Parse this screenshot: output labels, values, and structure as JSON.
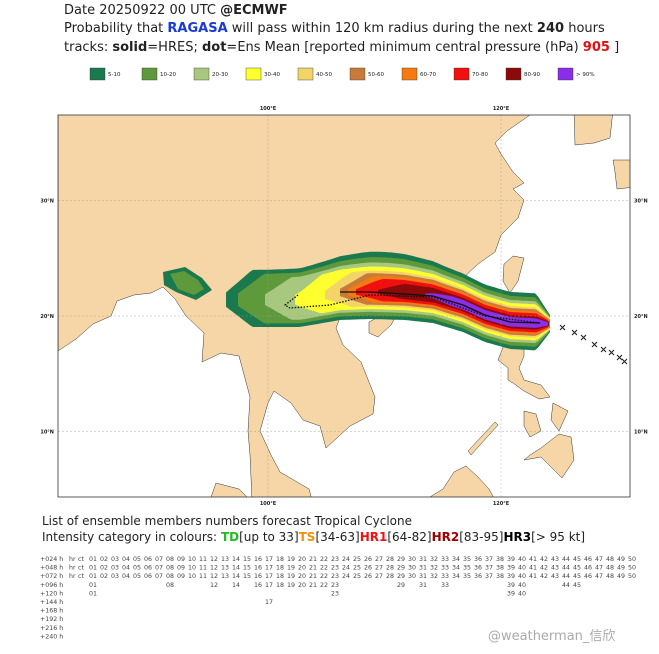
{
  "header": {
    "date": "Date 20250922 00 UTC",
    "source": "@ECMWF",
    "line2": {
      "pre": "Probability that",
      "storm": "RAGASA",
      "mid": "will pass within 120 km radius during the next",
      "hours": "240",
      "post": "hours"
    },
    "line3": {
      "pre": "tracks:",
      "solid": "solid",
      "hres": "=HRES;",
      "dot": "dot",
      "mean": "=Ens Mean [reported minimum central pressure (hPa)",
      "pressure": "905",
      "close": "]"
    }
  },
  "legend": [
    {
      "label": "5-10",
      "color": "#1a7a4e"
    },
    {
      "label": "10-20",
      "color": "#5e9a3c"
    },
    {
      "label": "20-30",
      "color": "#a8c880"
    },
    {
      "label": "30-40",
      "color": "#ffff30"
    },
    {
      "label": "40-50",
      "color": "#f2d468"
    },
    {
      "label": "50-60",
      "color": "#c87a3a"
    },
    {
      "label": "60-70",
      "color": "#f57a12"
    },
    {
      "label": "70-80",
      "color": "#f01010"
    },
    {
      "label": "80-90",
      "color": "#8c0a0a"
    },
    {
      "label": "> 90%",
      "color": "#8a2ee8"
    }
  ],
  "map": {
    "lon_labels": [
      "100°E",
      "120°E"
    ],
    "lat_labels": [
      "30°N",
      "20°N",
      "10°N"
    ]
  },
  "table": {
    "title": "List of ensemble members numbers forecast Tropical Cyclone",
    "intensity_intro": "Intensity category in colours:",
    "intensity": [
      {
        "label": "TD",
        "range": "[up to 33]",
        "color": "#22bb22"
      },
      {
        "label": "TS",
        "range": "[34-63]",
        "color": "#ff8c00"
      },
      {
        "label": "HR1",
        "range": "[64-82]",
        "color": "#ee1111"
      },
      {
        "label": "HR2",
        "range": "[83-95]",
        "color": "#a00000"
      },
      {
        "label": "HR3",
        "range": "[> 95 kt]",
        "color": "#000000"
      }
    ],
    "rows": [
      {
        "hour": "+024 h",
        "hres": "hr",
        "ctrl": "ct",
        "hres_cat": 3,
        "ctrl_cat": 2,
        "members": [
          "01",
          "02",
          "03",
          "04",
          "05",
          "06",
          "07",
          "08",
          "09",
          "10",
          "11",
          "12",
          "13",
          "14",
          "15",
          "16",
          "17",
          "18",
          "19",
          "20",
          "21",
          "22",
          "23",
          "24",
          "25",
          "26",
          "27",
          "28",
          "29",
          "30",
          "31",
          "32",
          "33",
          "34",
          "35",
          "36",
          "37",
          "38",
          "39",
          "40",
          "41",
          "42",
          "43",
          "44",
          "45",
          "46",
          "47",
          "48",
          "49",
          "50"
        ],
        "cats": [
          2,
          2,
          3,
          3,
          3,
          3,
          2,
          1,
          2,
          2,
          3,
          3,
          2,
          2,
          3,
          3,
          2,
          2,
          3,
          3,
          2,
          2,
          3,
          3,
          1,
          2,
          3,
          2,
          3,
          2,
          3,
          3,
          2,
          2,
          2,
          2,
          2,
          3,
          3,
          2,
          2,
          2,
          1,
          2,
          1,
          2,
          1,
          2,
          3,
          3
        ]
      },
      {
        "hour": "+048 h",
        "hres": "hr",
        "ctrl": "ct",
        "hres_cat": 2,
        "ctrl_cat": 2,
        "members": [
          "01",
          "02",
          "03",
          "04",
          "05",
          "06",
          "07",
          "08",
          "09",
          "10",
          "11",
          "12",
          "13",
          "14",
          "15",
          "16",
          "17",
          "18",
          "19",
          "20",
          "21",
          "22",
          "23",
          "24",
          "25",
          "26",
          "27",
          "28",
          "29",
          "30",
          "31",
          "32",
          "33",
          "34",
          "35",
          "36",
          "37",
          "38",
          "39",
          "40",
          "41",
          "42",
          "43",
          "44",
          "45",
          "46",
          "47",
          "48",
          "49",
          "50"
        ],
        "cats": [
          2,
          2,
          2,
          2,
          2,
          2,
          2,
          1,
          2,
          2,
          2,
          2,
          2,
          2,
          2,
          2,
          2,
          2,
          2,
          2,
          2,
          2,
          2,
          2,
          2,
          2,
          2,
          2,
          2,
          2,
          2,
          2,
          2,
          2,
          2,
          2,
          2,
          2,
          2,
          2,
          2,
          2,
          2,
          2,
          1,
          2,
          2,
          2,
          2,
          2
        ]
      },
      {
        "hour": "+072 h",
        "hres": "hr",
        "ctrl": "ct",
        "hres_cat": 1,
        "ctrl_cat": 1,
        "members": [
          "01",
          "02",
          "03",
          "04",
          "05",
          "06",
          "07",
          "08",
          "09",
          "10",
          "11",
          "12",
          "13",
          "14",
          "15",
          "16",
          "17",
          "18",
          "19",
          "20",
          "21",
          "22",
          "23",
          "24",
          "25",
          "26",
          "27",
          "28",
          "29",
          "30",
          "31",
          "32",
          "33",
          "34",
          "35",
          "36",
          "37",
          "38",
          "39",
          "40",
          "41",
          "42",
          "43",
          "44",
          "45",
          "46",
          "47",
          "48",
          "49",
          "50"
        ],
        "cats": [
          0,
          0,
          0,
          0,
          0,
          0,
          0,
          1,
          0,
          0,
          1,
          0,
          0,
          0,
          0,
          0,
          0,
          0,
          0,
          0,
          0,
          0,
          1,
          1,
          1,
          1,
          1,
          0,
          1,
          0,
          0,
          1,
          0,
          0,
          0,
          0,
          1,
          1,
          1,
          0,
          0,
          1,
          1,
          1,
          0,
          0,
          0,
          0,
          0,
          0
        ]
      },
      {
        "hour": "+096 h",
        "members": [
          "01",
          "08",
          "12",
          "14",
          "16",
          "17",
          "18",
          "19",
          "20",
          "21",
          "22",
          "23",
          "29",
          "31",
          "33",
          "39",
          "40",
          "44",
          "45"
        ],
        "cats": [
          0,
          0,
          1,
          0,
          0,
          1,
          1,
          1,
          0,
          1,
          1,
          0,
          0,
          0,
          1,
          1,
          1,
          0,
          0
        ]
      },
      {
        "hour": "+120 h",
        "members": [
          "01",
          "23",
          "39",
          "40"
        ],
        "cats": [
          0,
          0,
          0,
          0
        ]
      },
      {
        "hour": "+144 h",
        "members": [
          "17"
        ],
        "cats": [
          0
        ]
      },
      {
        "hour": "+168 h",
        "members": [],
        "cats": []
      },
      {
        "hour": "+192 h",
        "members": [],
        "cats": []
      },
      {
        "hour": "+216 h",
        "members": [],
        "cats": []
      },
      {
        "hour": "+240 h",
        "members": [],
        "cats": []
      }
    ]
  },
  "watermark": "@weatherman_信欣"
}
